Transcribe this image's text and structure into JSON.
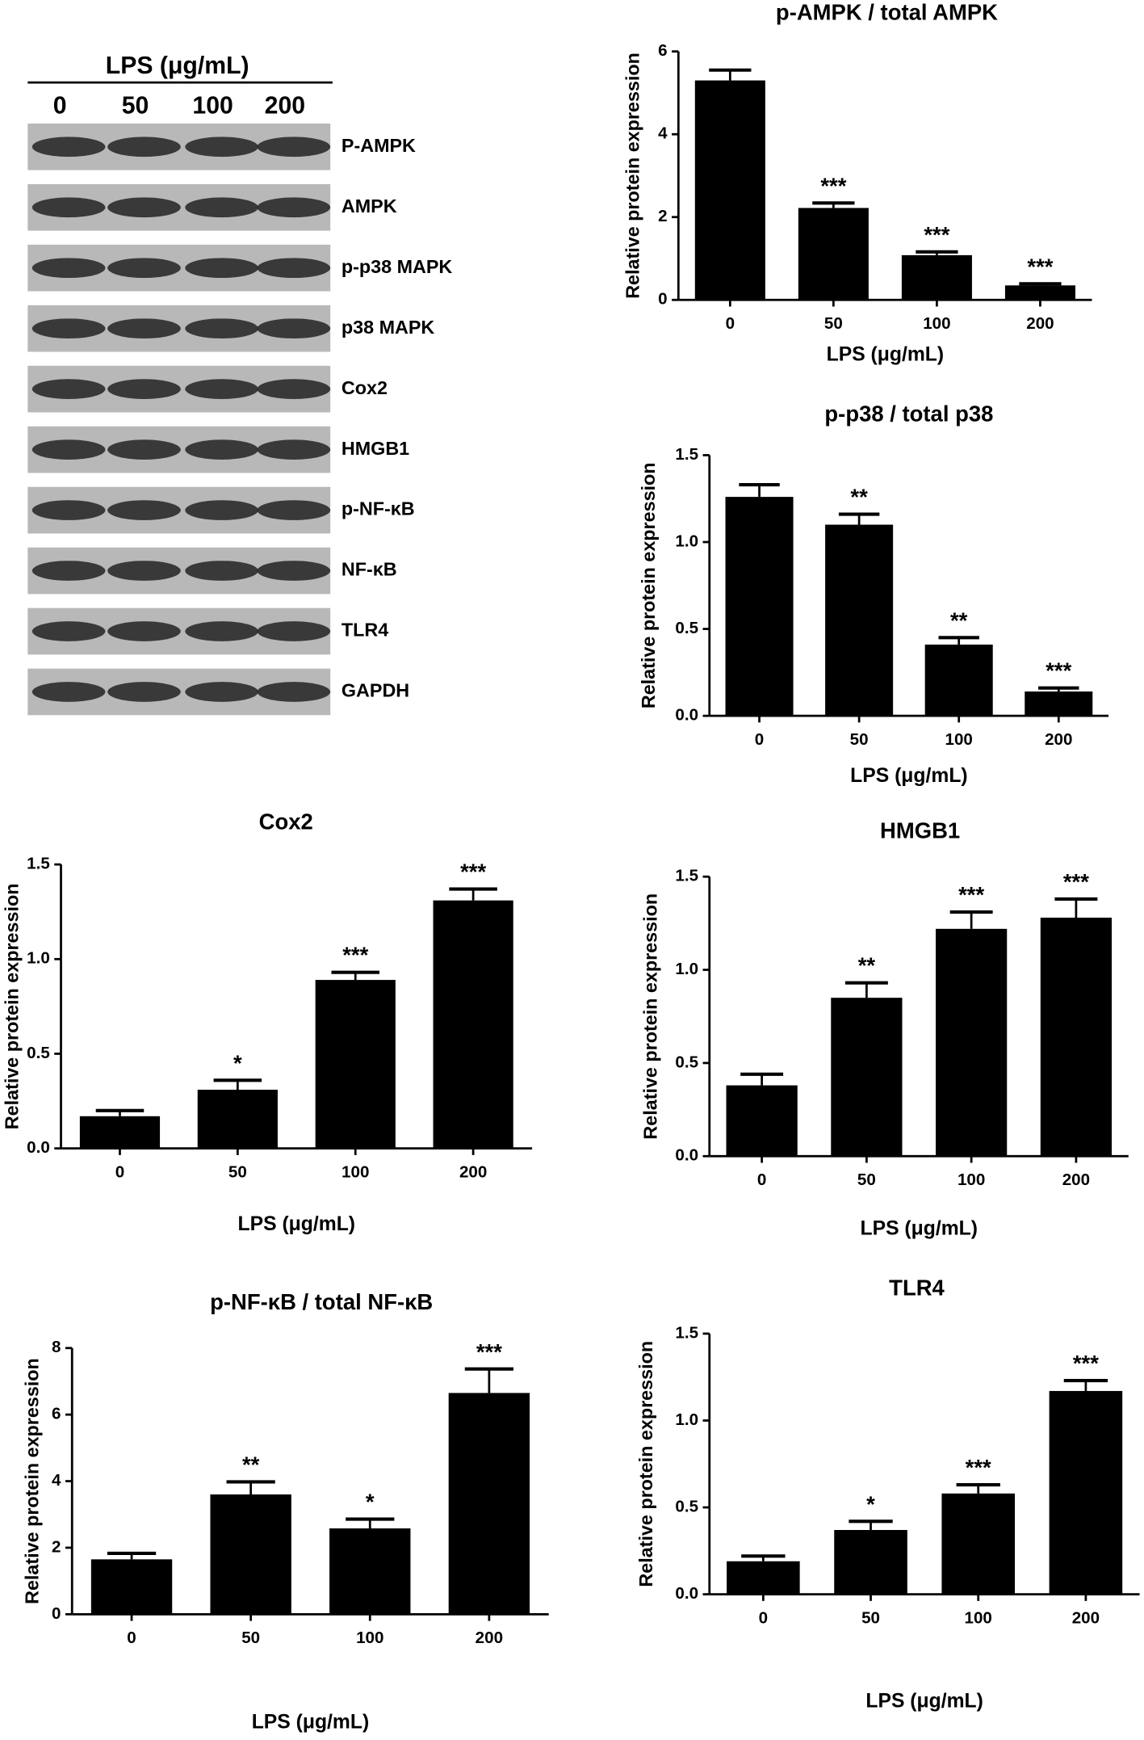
{
  "blot": {
    "treatment": "LPS (μg/mL)",
    "lanes": [
      "0",
      "50",
      "100",
      "200"
    ],
    "proteins": [
      "P-AMPK",
      "AMPK",
      "p-p38 MAPK",
      "p38 MAPK",
      "Cox2",
      "HMGB1",
      "p-NF-κB",
      "NF-κB",
      "TLR4",
      "GAPDH"
    ]
  },
  "chart_data": [
    {
      "type": "bar",
      "title": "p-AMPK / total AMPK",
      "x_label": "LPS (μg/mL)",
      "y_label": "Relative protein expression",
      "categories": [
        "0",
        "50",
        "100",
        "200"
      ],
      "values": [
        5.3,
        2.22,
        1.08,
        0.35
      ],
      "errors": [
        0.25,
        0.12,
        0.08,
        0.04
      ],
      "annotations": [
        null,
        "***",
        "***",
        "***"
      ],
      "color": "#000000",
      "ylim": [
        0,
        6
      ],
      "yticks": [
        0,
        2,
        4,
        6
      ]
    },
    {
      "type": "bar",
      "title": "p-p38 / total p38",
      "x_label": "LPS (μg/mL)",
      "y_label": "Relative protein expression",
      "categories": [
        "0",
        "50",
        "100",
        "200"
      ],
      "values": [
        1.26,
        1.1,
        0.41,
        0.14
      ],
      "errors": [
        0.07,
        0.06,
        0.04,
        0.02
      ],
      "annotations": [
        null,
        "**",
        "**",
        "***"
      ],
      "color": "#000000",
      "ylim": [
        0,
        1.5
      ],
      "yticks": [
        {
          "value": 0,
          "label": "0.0"
        },
        {
          "value": 0.5,
          "label": "0.5"
        },
        {
          "value": 1,
          "label": "1.0"
        },
        {
          "value": 1.5,
          "label": "1.5"
        }
      ]
    },
    {
      "type": "bar",
      "title": "Cox2",
      "x_label": "LPS (μg/mL)",
      "y_label": "Relative protein expression",
      "categories": [
        "0",
        "50",
        "100",
        "200"
      ],
      "values": [
        0.17,
        0.31,
        0.89,
        1.31
      ],
      "errors": [
        0.03,
        0.05,
        0.04,
        0.06
      ],
      "annotations": [
        null,
        "*",
        "***",
        "***"
      ],
      "color": "#000000",
      "ylim": [
        0,
        1.5
      ],
      "yticks": [
        {
          "value": 0,
          "label": "0.0"
        },
        {
          "value": 0.5,
          "label": "0.5"
        },
        {
          "value": 1,
          "label": "1.0"
        },
        {
          "value": 1.5,
          "label": "1.5"
        }
      ]
    },
    {
      "type": "bar",
      "title": "HMGB1",
      "x_label": "LPS (μg/mL)",
      "y_label": "Relative protein expression",
      "categories": [
        "0",
        "50",
        "100",
        "200"
      ],
      "values": [
        0.38,
        0.85,
        1.22,
        1.28
      ],
      "errors": [
        0.06,
        0.08,
        0.09,
        0.1
      ],
      "annotations": [
        null,
        "**",
        "***",
        "***"
      ],
      "color": "#000000",
      "ylim": [
        0,
        1.5
      ],
      "yticks": [
        {
          "value": 0,
          "label": "0.0"
        },
        {
          "value": 0.5,
          "label": "0.5"
        },
        {
          "value": 1,
          "label": "1.0"
        },
        {
          "value": 1.5,
          "label": "1.5"
        }
      ]
    },
    {
      "type": "bar",
      "title": "p-NF-κB / total NF-κB",
      "x_label": "LPS (μg/mL)",
      "y_label": "Relative protein expression",
      "categories": [
        "0",
        "50",
        "100",
        "200"
      ],
      "values": [
        1.65,
        3.6,
        2.58,
        6.65
      ],
      "errors": [
        0.18,
        0.38,
        0.28,
        0.72
      ],
      "annotations": [
        null,
        "**",
        "*",
        "***"
      ],
      "color": "#000000",
      "ylim": [
        0,
        8
      ],
      "yticks": [
        0,
        2,
        4,
        6,
        8
      ]
    },
    {
      "type": "bar",
      "title": "TLR4",
      "x_label": "LPS (μg/mL)",
      "y_label": "Relative protein expression",
      "categories": [
        "0",
        "50",
        "100",
        "200"
      ],
      "values": [
        0.19,
        0.37,
        0.58,
        1.17
      ],
      "errors": [
        0.03,
        0.05,
        0.05,
        0.06
      ],
      "annotations": [
        null,
        "*",
        "***",
        "***"
      ],
      "color": "#000000",
      "ylim": [
        0,
        1.5
      ],
      "yticks": [
        {
          "value": 0,
          "label": "0.0"
        },
        {
          "value": 0.5,
          "label": "0.5"
        },
        {
          "value": 1,
          "label": "1.0"
        },
        {
          "value": 1.5,
          "label": "1.5"
        }
      ]
    }
  ]
}
